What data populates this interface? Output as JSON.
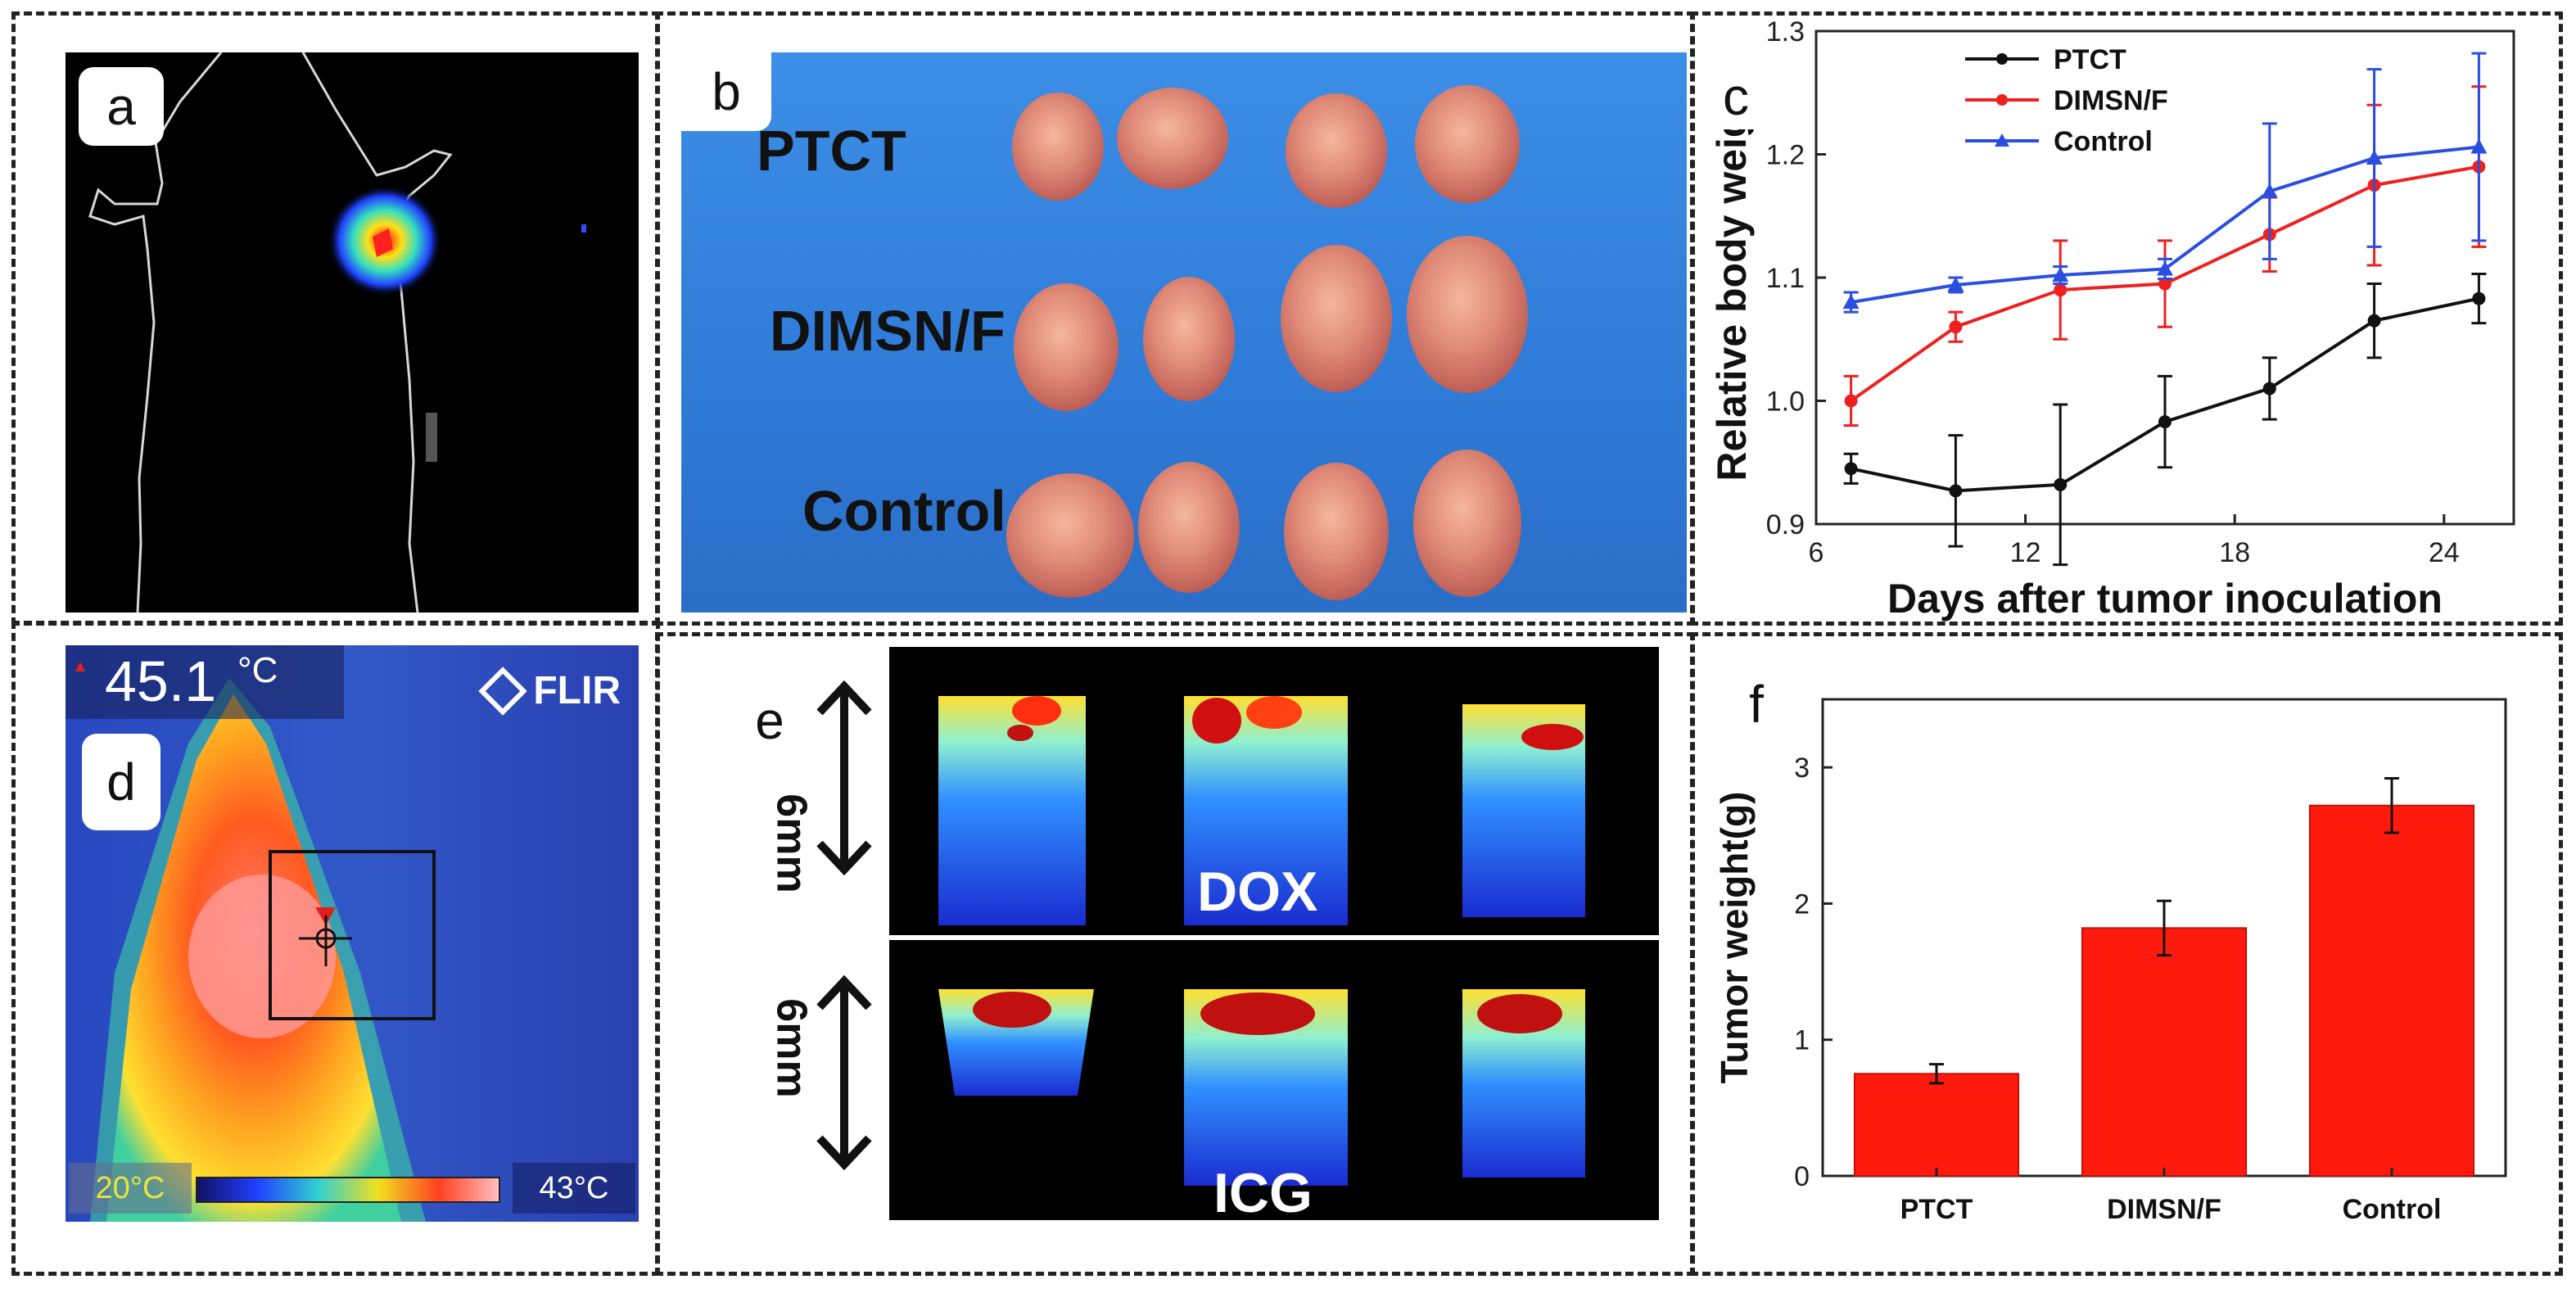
{
  "panels": {
    "a": {
      "label": "a"
    },
    "b": {
      "label": "b",
      "groups": [
        "PTCT",
        "DIMSN/F",
        "Control"
      ]
    },
    "c": {
      "label": "c"
    },
    "d": {
      "label": "d",
      "temp_reading": "45.1",
      "temp_unit": "°C",
      "brand": "FLIR",
      "scale_min": "20°C",
      "scale_max": "43°C"
    },
    "e": {
      "label": "e",
      "top_label": "DOX",
      "bottom_label": "ICG",
      "scale_top": "6mm",
      "scale_bottom": "6mm"
    },
    "f": {
      "label": "f"
    }
  },
  "chart_data": [
    {
      "id": "c",
      "type": "line",
      "xlabel": "Days after tumor inoculation",
      "ylabel": "Relative body weight",
      "xlim": [
        6,
        26
      ],
      "ylim": [
        0.9,
        1.3
      ],
      "xticks": [
        6,
        12,
        18,
        24
      ],
      "yticks": [
        0.9,
        1.0,
        1.1,
        1.2,
        1.3
      ],
      "legend_position": "top-left",
      "x": [
        7,
        10,
        13,
        16,
        19,
        22,
        25
      ],
      "series": [
        {
          "name": "PTCT",
          "color": "#111111",
          "marker": "circle",
          "values": [
            0.945,
            0.927,
            0.932,
            0.983,
            1.01,
            1.065,
            1.083
          ],
          "errors": [
            0.012,
            0.045,
            0.065,
            0.037,
            0.025,
            0.03,
            0.02
          ]
        },
        {
          "name": "DIMSN/F",
          "color": "#ee2020",
          "marker": "circle",
          "values": [
            1.0,
            1.06,
            1.09,
            1.095,
            1.135,
            1.175,
            1.19
          ],
          "errors": [
            0.02,
            0.012,
            0.04,
            0.035,
            0.03,
            0.065,
            0.065
          ]
        },
        {
          "name": "Control",
          "color": "#2a4fe0",
          "marker": "triangle",
          "values": [
            1.08,
            1.094,
            1.102,
            1.107,
            1.17,
            1.197,
            1.206
          ],
          "errors": [
            0.008,
            0.006,
            0.007,
            0.008,
            0.055,
            0.072,
            0.076
          ]
        }
      ]
    },
    {
      "id": "f",
      "type": "bar",
      "ylabel": "Tumor weight(g)",
      "xlabel": "",
      "categories": [
        "PTCT",
        "DIMSN/F",
        "Control"
      ],
      "values": [
        0.75,
        1.82,
        2.72
      ],
      "errors": [
        0.07,
        0.2,
        0.2
      ],
      "ylim": [
        0,
        3.5
      ],
      "yticks": [
        0,
        1,
        2,
        3
      ],
      "bar_color": "#ff1a0d"
    }
  ]
}
